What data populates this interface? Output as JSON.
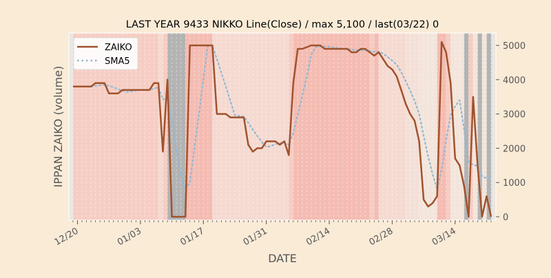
{
  "chart_data": {
    "type": "line",
    "title": "LAST YEAR 9433 NIKKO Line(Close) / max 5,100 / last(03/22) 0",
    "xlabel": "DATE",
    "ylabel": "IPPAN ZAIKO (volume)",
    "ylim": [
      0,
      5100
    ],
    "yticks": [
      0,
      1000,
      2000,
      3000,
      4000,
      5000
    ],
    "ytick_labels": [
      "0",
      "1000",
      "2000",
      "3000",
      "4000",
      "5000"
    ],
    "start_date": "12/19",
    "end_date": "03/22",
    "xticks": [
      {
        "index": 1,
        "label": "12/20"
      },
      {
        "index": 15,
        "label": "01/03"
      },
      {
        "index": 29,
        "label": "01/17"
      },
      {
        "index": 43,
        "label": "01/31"
      },
      {
        "index": 57,
        "label": "02/14"
      },
      {
        "index": 71,
        "label": "02/28"
      },
      {
        "index": 85,
        "label": "03/14"
      }
    ],
    "legend": {
      "placement": "top-left",
      "entries": [
        "ZAIKO",
        "SMA5"
      ]
    },
    "series": [
      {
        "name": "ZAIKO",
        "color": "#a0522d",
        "style": "solid",
        "values": [
          3800,
          3800,
          3800,
          3800,
          3800,
          3900,
          3900,
          3900,
          3600,
          3600,
          3600,
          3700,
          3700,
          3700,
          3700,
          3700,
          3700,
          3700,
          3900,
          3900,
          1900,
          4000,
          0,
          0,
          0,
          0,
          5000,
          5000,
          5000,
          5000,
          5000,
          5000,
          3000,
          3000,
          3000,
          2900,
          2900,
          2900,
          2900,
          2100,
          1900,
          2000,
          2000,
          2200,
          2200,
          2200,
          2100,
          2200,
          1800,
          3900,
          4900,
          4900,
          4950,
          5000,
          5000,
          5000,
          4900,
          4900,
          4900,
          4900,
          4900,
          4900,
          4800,
          4800,
          4900,
          4900,
          4800,
          4700,
          4800,
          4600,
          4400,
          4300,
          4100,
          3700,
          3300,
          3000,
          2800,
          2200,
          500,
          300,
          400,
          600,
          5100,
          4800,
          3900,
          1700,
          1500,
          900,
          0,
          3500,
          1500,
          0,
          600,
          0
        ]
      },
      {
        "name": "SMA5",
        "color": "#8fb8d4",
        "style": "dotted",
        "values": [
          null,
          null,
          null,
          null,
          3800,
          3820,
          3840,
          3860,
          3820,
          3780,
          3720,
          3680,
          3640,
          3660,
          3680,
          3700,
          3700,
          3700,
          3740,
          3780,
          3420,
          3480,
          2740,
          1960,
          1180,
          800,
          1000,
          2000,
          3000,
          4000,
          5000,
          5000,
          4600,
          4200,
          3800,
          3380,
          2960,
          2940,
          2920,
          2740,
          2540,
          2360,
          2180,
          2040,
          2060,
          2120,
          2140,
          2180,
          2100,
          2440,
          2980,
          3540,
          4090,
          4730,
          4950,
          4970,
          4970,
          4960,
          4940,
          4920,
          4900,
          4900,
          4880,
          4860,
          4860,
          4860,
          4840,
          4820,
          4820,
          4760,
          4660,
          4560,
          4440,
          4220,
          3960,
          3680,
          3380,
          3000,
          2360,
          1760,
          1240,
          800,
          1380,
          2240,
          2960,
          3220,
          3400,
          2560,
          1600,
          1520,
          1480,
          1180,
          1120,
          1120
        ]
      }
    ],
    "background_band_levels": [
      1,
      4,
      4,
      4,
      4,
      4,
      4,
      4,
      4,
      4,
      4,
      4,
      4,
      4,
      4,
      4,
      4,
      4,
      4,
      4,
      3,
      4,
      0,
      0,
      0,
      0,
      5,
      5,
      5,
      5,
      5,
      5,
      3,
      3,
      3,
      3,
      3,
      3,
      3,
      3,
      3,
      3,
      3,
      3,
      3,
      3,
      3,
      3,
      3,
      4,
      5,
      5,
      5,
      5,
      5,
      5,
      5,
      5,
      5,
      5,
      5,
      5,
      5,
      5,
      5,
      5,
      5,
      4,
      5,
      3,
      3,
      3,
      3,
      3,
      3,
      6,
      6,
      6,
      2,
      2,
      2,
      2,
      5,
      5,
      4,
      2,
      2,
      2,
      0,
      4,
      2,
      0,
      2,
      0
    ],
    "band_colors": [
      "#b3b3b3",
      "#eae7e3",
      "#f3e5db",
      "#f5dad1",
      "#f6cdc3",
      "#f4bcb2",
      "#f4e0d7"
    ]
  }
}
